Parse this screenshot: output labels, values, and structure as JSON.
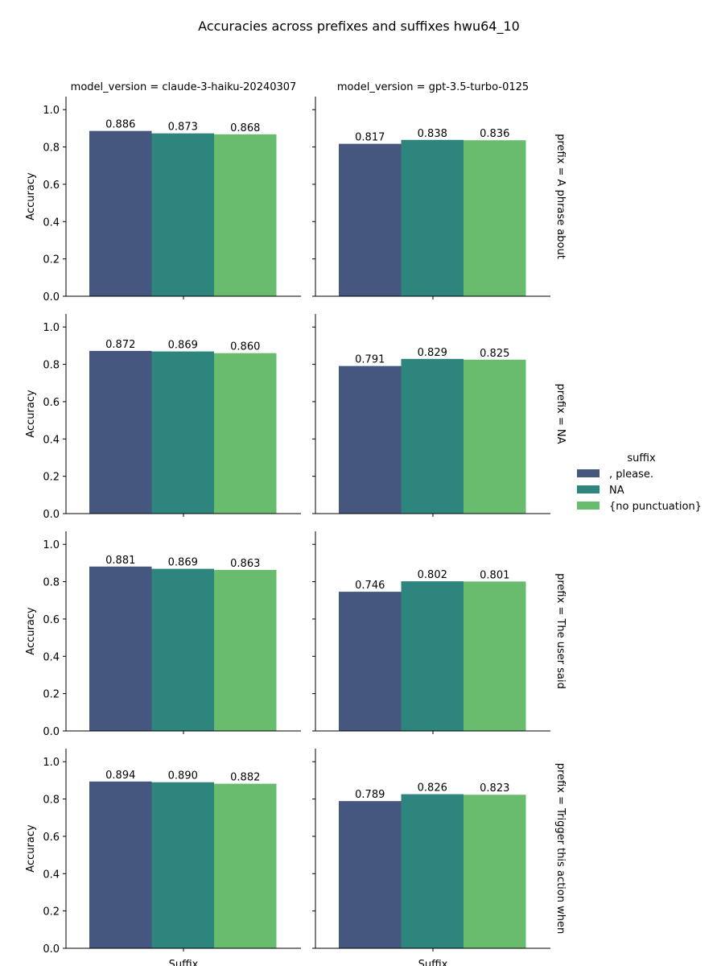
{
  "chart_data": {
    "type": "bar",
    "title": "Accuracies across prefixes and suffixes hwu64_10",
    "ylabel": "Accuracy",
    "xlabel": "Suffix",
    "ylim": [
      0,
      1.07
    ],
    "yticks": [
      "0.0",
      "0.2",
      "0.4",
      "0.6",
      "0.8",
      "1.0"
    ],
    "legend": {
      "title": "suffix",
      "position": "right",
      "entries": [
        ", please.",
        "NA",
        "{no punctuation}"
      ]
    },
    "colors": [
      "#46577f",
      "#2e857e",
      "#69bc6d"
    ],
    "col_labels": [
      "model_version = claude-3-haiku-20240307",
      "model_version = gpt-3.5-turbo-0125"
    ],
    "row_labels": [
      "prefix = A phrase about",
      "prefix = NA",
      "prefix = The user said",
      "prefix = Trigger this action when"
    ],
    "panels": [
      [
        {
          "values": [
            0.886,
            0.873,
            0.868
          ],
          "labels": [
            "0.886",
            "0.873",
            "0.868"
          ]
        },
        {
          "values": [
            0.817,
            0.838,
            0.836
          ],
          "labels": [
            "0.817",
            "0.838",
            "0.836"
          ]
        }
      ],
      [
        {
          "values": [
            0.872,
            0.869,
            0.86
          ],
          "labels": [
            "0.872",
            "0.869",
            "0.860"
          ]
        },
        {
          "values": [
            0.791,
            0.829,
            0.825
          ],
          "labels": [
            "0.791",
            "0.829",
            "0.825"
          ]
        }
      ],
      [
        {
          "values": [
            0.881,
            0.869,
            0.863
          ],
          "labels": [
            "0.881",
            "0.869",
            "0.863"
          ]
        },
        {
          "values": [
            0.746,
            0.802,
            0.801
          ],
          "labels": [
            "0.746",
            "0.802",
            "0.801"
          ]
        }
      ],
      [
        {
          "values": [
            0.894,
            0.89,
            0.882
          ],
          "labels": [
            "0.894",
            "0.890",
            "0.882"
          ]
        },
        {
          "values": [
            0.789,
            0.826,
            0.823
          ],
          "labels": [
            "0.789",
            "0.826",
            "0.823"
          ]
        }
      ]
    ]
  }
}
